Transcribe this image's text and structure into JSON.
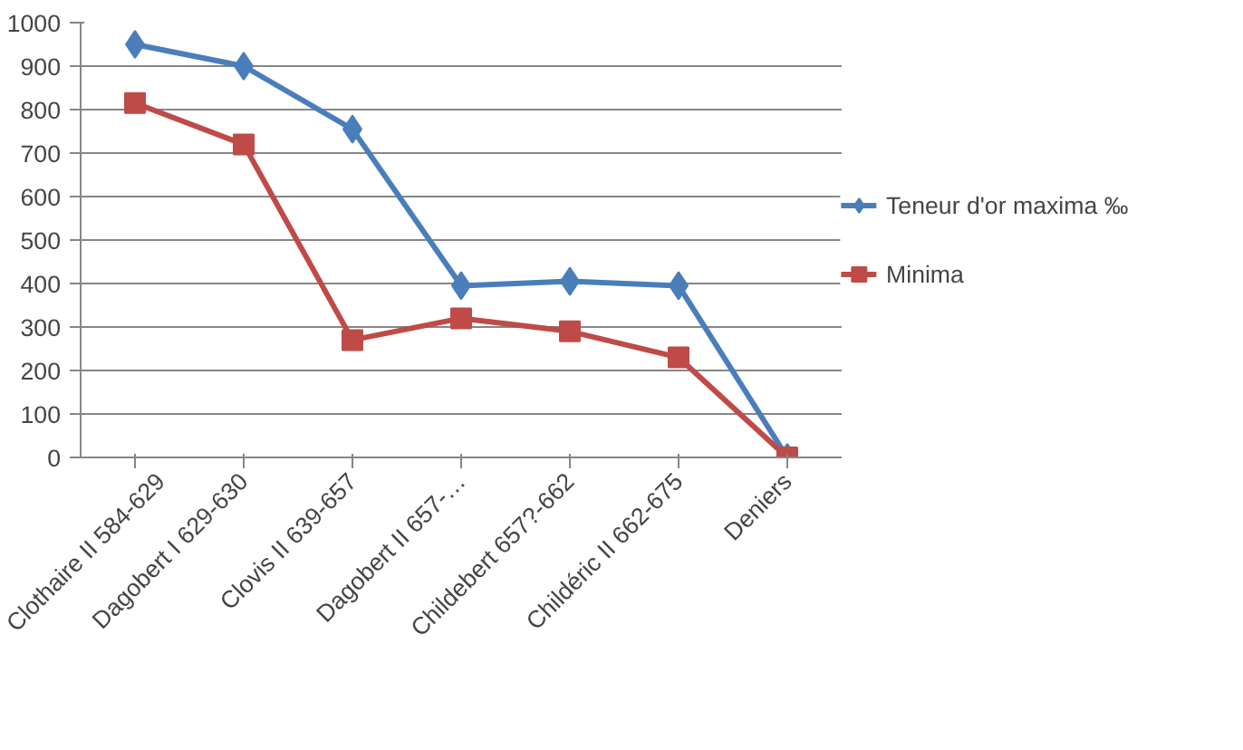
{
  "chart_data": {
    "type": "line",
    "categories": [
      "Clothaire II 584-629",
      "Dagobert I 629-630",
      "Clovis II 639-657",
      "Dagobert II 657-…",
      "Childebert 657?-662",
      "Childéric II 662-675",
      "Deniers"
    ],
    "series": [
      {
        "name": "Teneur d'or maxima ‰",
        "color": "#4a7ebb",
        "marker": "diamond",
        "values": [
          950,
          900,
          755,
          395,
          405,
          395,
          0
        ]
      },
      {
        "name": "Minima",
        "color": "#be4b48",
        "marker": "square",
        "values": [
          815,
          720,
          270,
          320,
          290,
          230,
          0
        ]
      }
    ],
    "ylim": [
      0,
      1000
    ],
    "yticks": [
      0,
      100,
      200,
      300,
      400,
      500,
      600,
      700,
      800,
      900,
      1000
    ],
    "grid": "y",
    "legend": "right",
    "line_style": "solid"
  }
}
